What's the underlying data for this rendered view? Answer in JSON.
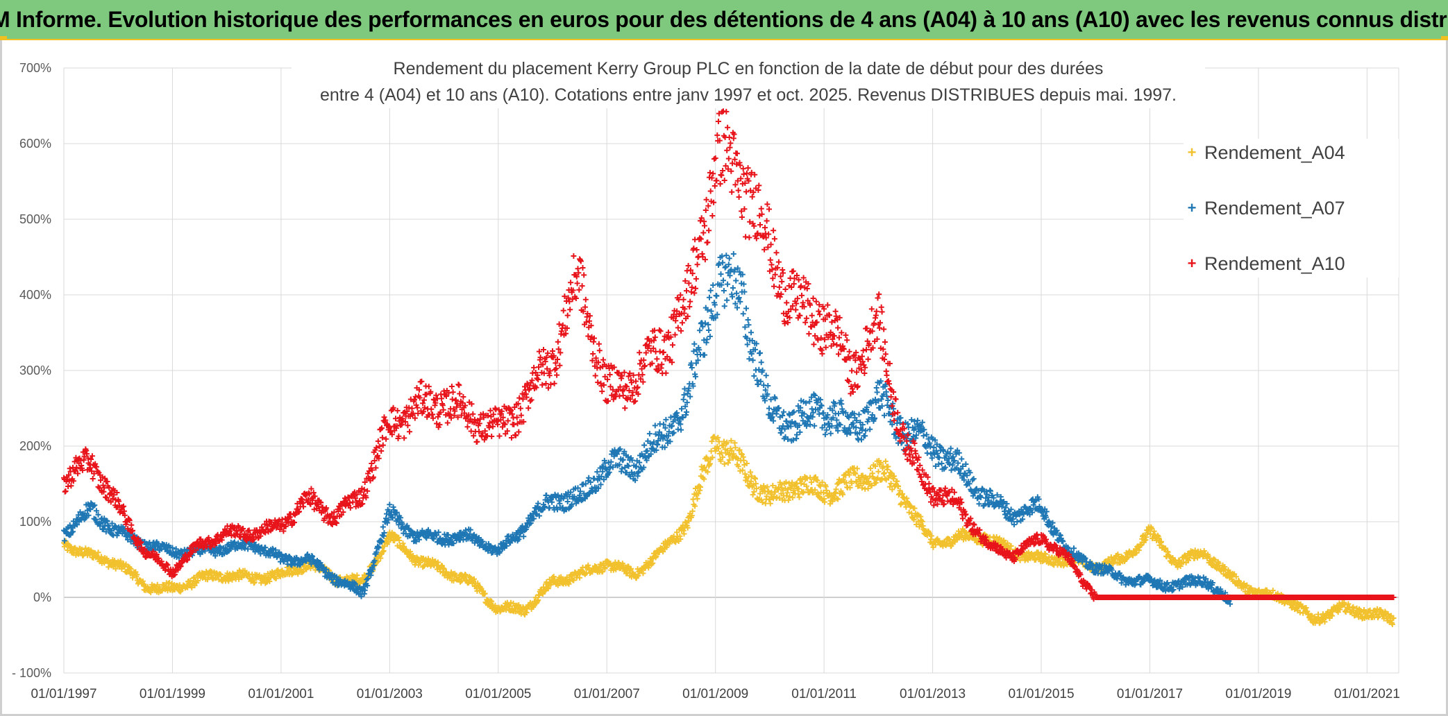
{
  "banner": {
    "title": "ADAM Informe. Evolution historique des performances en euros pour des détentions de 4 ans (A04) à 10 ans (A10) avec les revenus connus distribués"
  },
  "chart_data": {
    "type": "scatter",
    "title_line1": "Rendement du placement Kerry Group PLC en fonction de la date de début pour des durées",
    "title_line2": "entre 4 (A04) et 10 ans (A10). Cotations entre janv 1997 et oct. 2025. Revenus DISTRIBUES depuis mai. 1997.",
    "xlabel": "",
    "ylabel": "",
    "x_tick_labels": [
      "01/01/1997",
      "01/01/1999",
      "01/01/2001",
      "01/01/2003",
      "01/01/2005",
      "01/01/2007",
      "01/01/2009",
      "01/01/2011",
      "01/01/2013",
      "01/01/2015",
      "01/01/2017",
      "01/01/2019",
      "01/01/2021"
    ],
    "x_range": [
      "01/01/1997",
      "01/08/2021"
    ],
    "y_tick_labels": [
      "- 100%",
      "0%",
      "100%",
      "200%",
      "300%",
      "400%",
      "500%",
      "600%",
      "700%"
    ],
    "y_range_percent": [
      -100,
      700
    ],
    "grid": true,
    "legend_position": "right",
    "marker": "+",
    "series": [
      {
        "name": "Rendement_A04",
        "color": "#f2c12e",
        "points": [
          [
            "01/01/1997",
            70
          ],
          [
            "01/07/1997",
            55
          ],
          [
            "01/01/1998",
            45
          ],
          [
            "01/07/1998",
            15
          ],
          [
            "01/01/1999",
            10
          ],
          [
            "01/07/1999",
            25
          ],
          [
            "01/01/2000",
            30
          ],
          [
            "01/07/2000",
            25
          ],
          [
            "01/01/2001",
            30
          ],
          [
            "01/07/2001",
            45
          ],
          [
            "01/01/2002",
            25
          ],
          [
            "01/07/2002",
            20
          ],
          [
            "01/01/2003",
            80
          ],
          [
            "01/07/2003",
            50
          ],
          [
            "01/01/2004",
            35
          ],
          [
            "01/07/2004",
            20
          ],
          [
            "01/01/2005",
            -15
          ],
          [
            "01/07/2005",
            -15
          ],
          [
            "01/01/2006",
            20
          ],
          [
            "01/07/2006",
            30
          ],
          [
            "01/01/2007",
            45
          ],
          [
            "01/07/2007",
            30
          ],
          [
            "01/01/2008",
            60
          ],
          [
            "01/07/2008",
            100
          ],
          [
            "01/01/2009",
            210
          ],
          [
            "01/07/2009",
            170
          ],
          [
            "01/01/2010",
            130
          ],
          [
            "01/07/2010",
            150
          ],
          [
            "01/01/2011",
            140
          ],
          [
            "01/07/2011",
            150
          ],
          [
            "01/01/2012",
            170
          ],
          [
            "01/07/2012",
            130
          ],
          [
            "01/01/2013",
            70
          ],
          [
            "01/07/2013",
            80
          ],
          [
            "01/01/2014",
            80
          ],
          [
            "01/07/2014",
            60
          ],
          [
            "01/01/2015",
            50
          ],
          [
            "01/07/2015",
            50
          ],
          [
            "01/01/2016",
            40
          ],
          [
            "01/07/2016",
            50
          ],
          [
            "01/01/2017",
            85
          ],
          [
            "01/07/2017",
            45
          ],
          [
            "01/01/2018",
            60
          ],
          [
            "01/07/2018",
            25
          ],
          [
            "01/01/2019",
            5
          ],
          [
            "01/07/2019",
            0
          ],
          [
            "01/01/2020",
            -30
          ],
          [
            "01/07/2020",
            -15
          ],
          [
            "01/01/2021",
            -20
          ],
          [
            "01/07/2021",
            -30
          ]
        ]
      },
      {
        "name": "Rendement_A07",
        "color": "#1f77b4",
        "points": [
          [
            "01/01/1997",
            85
          ],
          [
            "01/07/1997",
            115
          ],
          [
            "01/01/1998",
            85
          ],
          [
            "01/07/1998",
            70
          ],
          [
            "01/01/1999",
            60
          ],
          [
            "01/07/1999",
            60
          ],
          [
            "01/01/2000",
            65
          ],
          [
            "01/07/2000",
            70
          ],
          [
            "01/01/2001",
            50
          ],
          [
            "01/07/2001",
            50
          ],
          [
            "01/01/2002",
            25
          ],
          [
            "01/07/2002",
            5
          ],
          [
            "01/01/2003",
            110
          ],
          [
            "01/07/2003",
            80
          ],
          [
            "01/01/2004",
            80
          ],
          [
            "01/07/2004",
            80
          ],
          [
            "01/01/2005",
            60
          ],
          [
            "01/07/2005",
            95
          ],
          [
            "01/01/2006",
            130
          ],
          [
            "01/07/2006",
            130
          ],
          [
            "01/01/2007",
            175
          ],
          [
            "01/07/2007",
            175
          ],
          [
            "01/01/2008",
            210
          ],
          [
            "01/07/2008",
            260
          ],
          [
            "01/01/2009",
            420
          ],
          [
            "01/07/2009",
            400
          ],
          [
            "01/01/2010",
            240
          ],
          [
            "01/07/2010",
            230
          ],
          [
            "01/01/2011",
            250
          ],
          [
            "01/07/2011",
            220
          ],
          [
            "01/01/2012",
            260
          ],
          [
            "01/07/2012",
            220
          ],
          [
            "01/01/2013",
            200
          ],
          [
            "01/07/2013",
            170
          ],
          [
            "01/01/2014",
            130
          ],
          [
            "01/07/2014",
            110
          ],
          [
            "01/01/2015",
            120
          ],
          [
            "01/07/2015",
            60
          ],
          [
            "01/01/2016",
            40
          ],
          [
            "01/07/2016",
            25
          ],
          [
            "01/01/2017",
            20
          ],
          [
            "01/07/2017",
            15
          ],
          [
            "01/01/2018",
            25
          ],
          [
            "01/07/2018",
            -10
          ]
        ]
      },
      {
        "name": "Rendement_A10",
        "color": "#e8141b",
        "points": [
          [
            "01/01/1997",
            155
          ],
          [
            "01/07/1997",
            180
          ],
          [
            "01/01/1998",
            120
          ],
          [
            "01/07/1998",
            60
          ],
          [
            "01/01/1999",
            35
          ],
          [
            "01/07/1999",
            70
          ],
          [
            "01/01/2000",
            85
          ],
          [
            "01/07/2000",
            85
          ],
          [
            "01/01/2001",
            95
          ],
          [
            "01/07/2001",
            130
          ],
          [
            "01/01/2002",
            105
          ],
          [
            "01/07/2002",
            140
          ],
          [
            "01/01/2003",
            230
          ],
          [
            "01/07/2003",
            250
          ],
          [
            "01/01/2004",
            260
          ],
          [
            "01/07/2004",
            240
          ],
          [
            "01/01/2005",
            220
          ],
          [
            "01/07/2005",
            260
          ],
          [
            "01/01/2006",
            320
          ],
          [
            "01/07/2006",
            420
          ],
          [
            "01/01/2007",
            270
          ],
          [
            "01/07/2007",
            290
          ],
          [
            "01/01/2008",
            330
          ],
          [
            "01/07/2008",
            390
          ],
          [
            "01/01/2009",
            580
          ],
          [
            "01/07/2009",
            560
          ],
          [
            "01/01/2010",
            460
          ],
          [
            "01/07/2010",
            380
          ],
          [
            "01/01/2011",
            370
          ],
          [
            "01/07/2011",
            300
          ],
          [
            "01/01/2012",
            360
          ],
          [
            "01/07/2012",
            200
          ],
          [
            "01/01/2013",
            140
          ],
          [
            "01/07/2013",
            120
          ],
          [
            "01/01/2014",
            70
          ],
          [
            "01/07/2014",
            55
          ],
          [
            "01/01/2015",
            80
          ],
          [
            "01/07/2015",
            50
          ],
          [
            "01/01/2016",
            0
          ],
          [
            "01/01/2018",
            0
          ],
          [
            "01/01/2020",
            0
          ],
          [
            "01/07/2021",
            0
          ]
        ]
      }
    ]
  }
}
